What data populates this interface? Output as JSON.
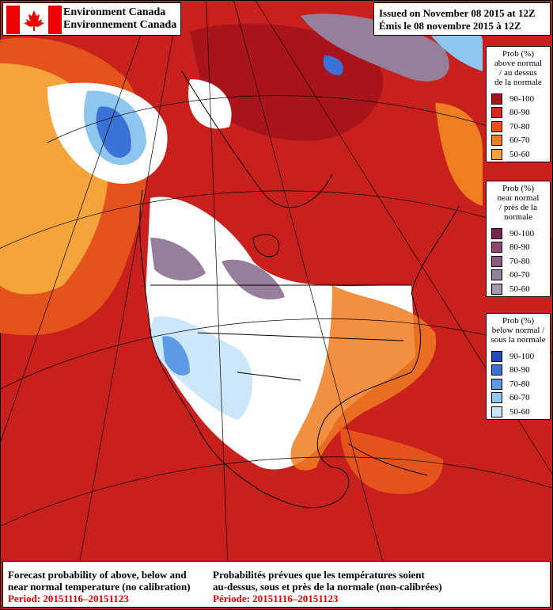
{
  "header": {
    "agency_en": "Environment Canada",
    "agency_fr": "Environnement Canada",
    "issued_en": "Issued on November 08 2015 at 12Z",
    "issued_fr": "Émis le 08 novembre 2015 à 12Z"
  },
  "legends": [
    {
      "title": [
        "Prob (%)",
        "above normal",
        "/ au dessus",
        "de la normale"
      ],
      "items": [
        {
          "label": "90-100",
          "color": "#a8141a"
        },
        {
          "label": "80-90",
          "color": "#d02a22"
        },
        {
          "label": "70-80",
          "color": "#e5531d"
        },
        {
          "label": "60-70",
          "color": "#ef7d22"
        },
        {
          "label": "50-60",
          "color": "#f4a43a"
        }
      ]
    },
    {
      "title": [
        "Prob (%)",
        "near normal",
        "/ près de la",
        "normale"
      ],
      "items": [
        {
          "label": "90-100",
          "color": "#7a2456"
        },
        {
          "label": "80-90",
          "color": "#94446e"
        },
        {
          "label": "70-80",
          "color": "#8a5a80"
        },
        {
          "label": "60-70",
          "color": "#95809c"
        },
        {
          "label": "50-60",
          "color": "#a596b4"
        }
      ]
    },
    {
      "title": [
        "Prob (%)",
        "below normal /",
        "sous la normale"
      ],
      "items": [
        {
          "label": "90-100",
          "color": "#1f4fb4"
        },
        {
          "label": "80-90",
          "color": "#3a72d6"
        },
        {
          "label": "70-80",
          "color": "#5c9be4"
        },
        {
          "label": "60-70",
          "color": "#8fc6f0"
        },
        {
          "label": "50-60",
          "color": "#cce7fa"
        }
      ]
    }
  ],
  "footer": {
    "en": [
      "Forecast probability of above, below and",
      "near normal temperature (no calibration)"
    ],
    "en_period": "Period: 20151116–20151123",
    "fr": [
      "Probabilités prévues que les températures soient",
      "au-dessus, sous et près de la normale (non-calibrées)"
    ],
    "fr_period": "Période: 20151116–20151123"
  }
}
